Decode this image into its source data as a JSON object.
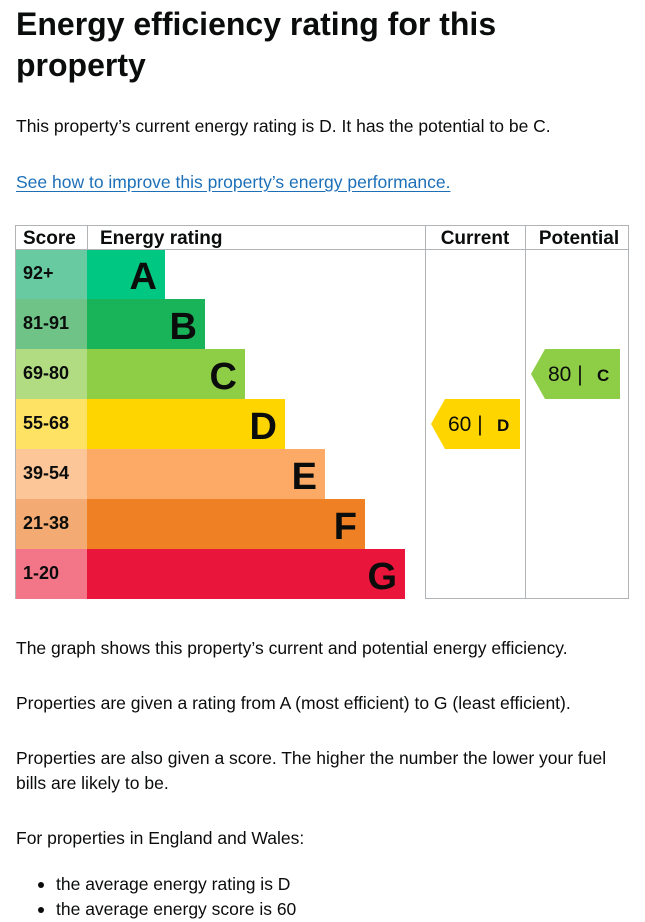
{
  "page": {
    "title": "Energy efficiency rating for this property",
    "summary": "This property’s current energy rating is D. It has the potential to be C.",
    "improve_link": "See how to improve this property’s energy performance.",
    "para1": "The graph shows this property’s current and potential energy efficiency.",
    "para2": "Properties are given a rating from A (most efficient) to G (least efficient).",
    "para3": "Properties are also given a score. The higher the number the lower your fuel bills are likely to be.",
    "para4": "For properties in England and Wales:",
    "bullets": [
      "the average energy rating is D",
      "the average energy score is 60"
    ]
  },
  "chart_data": {
    "type": "bar",
    "headers": {
      "score": "Score",
      "rating": "Energy rating",
      "current": "Current",
      "potential": "Potential"
    },
    "bands": [
      {
        "score": "92+",
        "letter": "A",
        "color": "#00c781",
        "score_bg": "#67caa1"
      },
      {
        "score": "81-91",
        "letter": "B",
        "color": "#19b459",
        "score_bg": "#6fc386"
      },
      {
        "score": "69-80",
        "letter": "C",
        "color": "#8dce46",
        "score_bg": "#b1dc82"
      },
      {
        "score": "55-68",
        "letter": "D",
        "color": "#ffd500",
        "score_bg": "#fee264"
      },
      {
        "score": "39-54",
        "letter": "E",
        "color": "#fcaa65",
        "score_bg": "#fcc699"
      },
      {
        "score": "21-38",
        "letter": "F",
        "color": "#ef8023",
        "score_bg": "#f4ab73"
      },
      {
        "score": "1-20",
        "letter": "G",
        "color": "#e9153b",
        "score_bg": "#f27688"
      }
    ],
    "current": {
      "score": 60,
      "letter": "D",
      "label": "60 |",
      "color": "#ffd500"
    },
    "potential": {
      "score": 80,
      "letter": "C",
      "label": "80 |",
      "color": "#8dce46"
    }
  }
}
